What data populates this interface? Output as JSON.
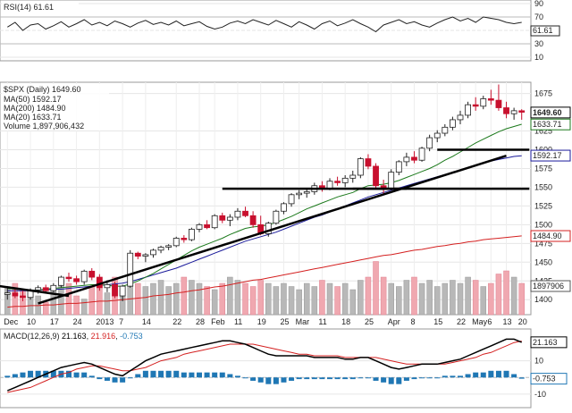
{
  "rsi": {
    "label": "RSI(14) 61.61",
    "value_label": "61.61",
    "ticks": [
      "90",
      "70",
      "50",
      "30",
      "10"
    ],
    "ylim": [
      10,
      90
    ],
    "values": [
      55,
      62,
      50,
      58,
      60,
      52,
      57,
      63,
      55,
      60,
      66,
      58,
      62,
      57,
      64,
      60,
      55,
      61,
      65,
      59,
      62,
      58,
      64,
      57,
      60,
      63,
      56,
      52,
      55,
      61,
      64,
      60,
      66,
      62,
      58,
      65,
      60,
      55,
      63,
      58,
      52,
      60,
      64,
      57,
      61,
      66,
      60,
      55,
      48,
      58,
      62,
      66,
      60,
      63,
      58,
      55,
      61,
      66,
      70,
      64,
      68,
      62,
      70,
      68,
      66,
      62,
      60,
      62
    ],
    "color": "#222222"
  },
  "price": {
    "title": "$SPX (Daily) 1649.60",
    "legend": [
      {
        "text": "MA(50) 1592.17",
        "color": "#1a1a9a"
      },
      {
        "text": "MA(200) 1484.90",
        "color": "#d42020"
      },
      {
        "text": "MA(20) 1633.71",
        "color": "#1c7a1c"
      },
      {
        "text": "Volume 1,897,906,432",
        "color": "#555555"
      }
    ],
    "ticks": [
      "1675",
      "1625",
      "1600",
      "1575",
      "1550",
      "1525",
      "1500",
      "1475",
      "1450",
      "1425",
      "1400"
    ],
    "ylim": [
      1380,
      1690
    ],
    "value_badges": [
      {
        "text": "1649.60",
        "color": "#000000"
      },
      {
        "text": "1633.71",
        "color": "#1c7a1c"
      },
      {
        "text": "1592.17",
        "color": "#1a1a9a"
      },
      {
        "text": "1484.90",
        "color": "#d42020"
      },
      {
        "text": "1897906",
        "color": "#555555"
      }
    ],
    "x_labels": [
      "Dec",
      "10",
      "17",
      "24",
      "2013",
      "7",
      "14",
      "22",
      "28",
      "Feb",
      "11",
      "19",
      "25",
      "Mar",
      "11",
      "18",
      "25",
      "Apr",
      "8",
      "15",
      "22",
      "May",
      "6",
      "13",
      "20"
    ],
    "ohlc": [
      [
        1407,
        1418,
        1400,
        1409
      ],
      [
        1409,
        1416,
        1402,
        1405
      ],
      [
        1405,
        1412,
        1398,
        1403
      ],
      [
        1403,
        1415,
        1400,
        1413
      ],
      [
        1413,
        1419,
        1408,
        1416
      ],
      [
        1416,
        1420,
        1409,
        1412
      ],
      [
        1412,
        1422,
        1410,
        1419
      ],
      [
        1419,
        1432,
        1416,
        1430
      ],
      [
        1430,
        1436,
        1424,
        1428
      ],
      [
        1428,
        1432,
        1420,
        1424
      ],
      [
        1424,
        1440,
        1420,
        1438
      ],
      [
        1438,
        1442,
        1426,
        1430
      ],
      [
        1430,
        1434,
        1412,
        1416
      ],
      [
        1416,
        1426,
        1410,
        1420
      ],
      [
        1420,
        1424,
        1402,
        1405
      ],
      [
        1405,
        1420,
        1398,
        1418
      ],
      [
        1418,
        1466,
        1416,
        1462
      ],
      [
        1462,
        1464,
        1454,
        1458
      ],
      [
        1458,
        1462,
        1450,
        1460
      ],
      [
        1460,
        1468,
        1456,
        1466
      ],
      [
        1466,
        1472,
        1462,
        1470
      ],
      [
        1470,
        1474,
        1466,
        1472
      ],
      [
        1472,
        1484,
        1470,
        1482
      ],
      [
        1482,
        1486,
        1476,
        1480
      ],
      [
        1480,
        1496,
        1478,
        1494
      ],
      [
        1494,
        1502,
        1490,
        1500
      ],
      [
        1500,
        1506,
        1494,
        1496
      ],
      [
        1496,
        1514,
        1494,
        1512
      ],
      [
        1512,
        1516,
        1502,
        1506
      ],
      [
        1506,
        1514,
        1498,
        1510
      ],
      [
        1510,
        1522,
        1506,
        1518
      ],
      [
        1518,
        1524,
        1510,
        1512
      ],
      [
        1512,
        1518,
        1496,
        1500
      ],
      [
        1500,
        1512,
        1486,
        1488
      ],
      [
        1488,
        1504,
        1484,
        1502
      ],
      [
        1502,
        1520,
        1500,
        1518
      ],
      [
        1518,
        1530,
        1514,
        1528
      ],
      [
        1528,
        1542,
        1524,
        1540
      ],
      [
        1540,
        1546,
        1534,
        1542
      ],
      [
        1542,
        1548,
        1536,
        1544
      ],
      [
        1544,
        1556,
        1540,
        1552
      ],
      [
        1552,
        1558,
        1544,
        1548
      ],
      [
        1548,
        1562,
        1546,
        1558
      ],
      [
        1558,
        1564,
        1552,
        1556
      ],
      [
        1556,
        1566,
        1550,
        1562
      ],
      [
        1562,
        1572,
        1556,
        1566
      ],
      [
        1566,
        1590,
        1562,
        1588
      ],
      [
        1588,
        1594,
        1574,
        1578
      ],
      [
        1578,
        1582,
        1548,
        1552
      ],
      [
        1552,
        1560,
        1540,
        1548
      ],
      [
        1548,
        1574,
        1546,
        1570
      ],
      [
        1570,
        1586,
        1566,
        1584
      ],
      [
        1584,
        1596,
        1578,
        1590
      ],
      [
        1590,
        1598,
        1582,
        1586
      ],
      [
        1586,
        1604,
        1584,
        1602
      ],
      [
        1602,
        1620,
        1598,
        1616
      ],
      [
        1616,
        1626,
        1610,
        1622
      ],
      [
        1622,
        1634,
        1618,
        1630
      ],
      [
        1630,
        1644,
        1626,
        1640
      ],
      [
        1640,
        1652,
        1634,
        1646
      ],
      [
        1646,
        1664,
        1642,
        1660
      ],
      [
        1660,
        1670,
        1652,
        1658
      ],
      [
        1658,
        1672,
        1654,
        1668
      ],
      [
        1668,
        1680,
        1660,
        1666
      ],
      [
        1666,
        1687,
        1652,
        1656
      ],
      [
        1656,
        1664,
        1642,
        1648
      ],
      [
        1648,
        1656,
        1640,
        1652
      ],
      [
        1652,
        1654,
        1640,
        1650
      ]
    ],
    "ma20": [
      1415,
      1414,
      1413,
      1412,
      1413,
      1414,
      1415,
      1416,
      1417,
      1418,
      1419,
      1420,
      1420,
      1419,
      1418,
      1418,
      1421,
      1425,
      1430,
      1435,
      1441,
      1447,
      1453,
      1459,
      1465,
      1470,
      1474,
      1478,
      1482,
      1487,
      1491,
      1495,
      1497,
      1498,
      1500,
      1503,
      1507,
      1511,
      1516,
      1521,
      1525,
      1529,
      1533,
      1537,
      1540,
      1543,
      1548,
      1552,
      1553,
      1554,
      1556,
      1559,
      1563,
      1567,
      1571,
      1575,
      1580,
      1586,
      1591,
      1597,
      1603,
      1609,
      1614,
      1619,
      1624,
      1628,
      1631,
      1634
    ],
    "ma50": [
      1412,
      1412,
      1412,
      1412,
      1413,
      1413,
      1414,
      1414,
      1415,
      1416,
      1417,
      1418,
      1419,
      1420,
      1421,
      1422,
      1424,
      1427,
      1430,
      1433,
      1436,
      1439,
      1442,
      1446,
      1450,
      1454,
      1458,
      1462,
      1466,
      1470,
      1474,
      1478,
      1481,
      1484,
      1487,
      1490,
      1494,
      1498,
      1502,
      1506,
      1510,
      1513,
      1517,
      1521,
      1525,
      1529,
      1533,
      1537,
      1540,
      1543,
      1546,
      1549,
      1552,
      1555,
      1558,
      1561,
      1564,
      1567,
      1570,
      1573,
      1576,
      1579,
      1582,
      1585,
      1587,
      1589,
      1591,
      1592
    ],
    "ma200": [
      1390,
      1391,
      1391,
      1392,
      1392,
      1393,
      1393,
      1394,
      1395,
      1395,
      1396,
      1397,
      1398,
      1398,
      1399,
      1400,
      1401,
      1402,
      1403,
      1405,
      1406,
      1407,
      1409,
      1410,
      1412,
      1413,
      1415,
      1417,
      1418,
      1420,
      1422,
      1424,
      1426,
      1427,
      1429,
      1431,
      1433,
      1435,
      1437,
      1439,
      1441,
      1443,
      1445,
      1447,
      1449,
      1451,
      1453,
      1455,
      1457,
      1459,
      1460,
      1462,
      1464,
      1466,
      1467,
      1469,
      1471,
      1472,
      1474,
      1475,
      1477,
      1478,
      1480,
      1481,
      1482,
      1483,
      1484,
      1485
    ],
    "volume": [
      0.45,
      0.5,
      0.4,
      0.35,
      0.3,
      0.2,
      0.4,
      0.55,
      0.5,
      0.3,
      0.25,
      0.45,
      0.5,
      0.35,
      0.6,
      0.4,
      0.55,
      0.5,
      0.45,
      0.5,
      0.55,
      0.45,
      0.5,
      0.6,
      0.55,
      0.5,
      0.45,
      0.4,
      0.5,
      0.6,
      0.55,
      0.5,
      0.45,
      0.55,
      0.5,
      0.45,
      0.5,
      0.45,
      0.4,
      0.5,
      0.45,
      0.55,
      0.5,
      0.45,
      0.5,
      0.4,
      0.55,
      0.6,
      0.85,
      0.6,
      0.5,
      0.45,
      0.55,
      0.6,
      0.5,
      0.55,
      0.45,
      0.5,
      0.55,
      0.5,
      0.6,
      0.55,
      0.45,
      0.5,
      0.65,
      0.7,
      0.6,
      0.5
    ],
    "support_lines": [
      {
        "from": [
          4,
          1395
        ],
        "to": [
          65,
          1592
        ]
      },
      {
        "from": [
          -1,
          1418
        ],
        "to": [
          8,
          1405
        ]
      },
      {
        "from": [
          28,
          1548
        ],
        "to": [
          52,
          1548
        ]
      },
      {
        "from": [
          45,
          1548
        ],
        "to": [
          68,
          1548
        ]
      },
      {
        "from": [
          56,
          1600
        ],
        "to": [
          68,
          1600
        ]
      }
    ]
  },
  "macd": {
    "label": "MACD(12,26,9) 21.163, 21.916, -0.753",
    "label_parts": [
      "MACD(12,26,9) ",
      "21.163",
      ", ",
      "21.916",
      ", ",
      "-0.753"
    ],
    "ticks": [
      "10",
      "0",
      "-10"
    ],
    "value_badges": [
      {
        "text": "21.163",
        "color": "#000000"
      },
      {
        "text": "-0.753",
        "color": "#1f77b4"
      }
    ],
    "ylim": [
      -16,
      27
    ],
    "macd": [
      -8,
      -6,
      -4,
      -2,
      0,
      2,
      4,
      6,
      7,
      8,
      9,
      8,
      6,
      4,
      2,
      1,
      4,
      7,
      10,
      12,
      14,
      15,
      16,
      17,
      18,
      19,
      20,
      21,
      22,
      22,
      21,
      20,
      18,
      16,
      14,
      13,
      13,
      13,
      13,
      13,
      12,
      12,
      12,
      12,
      11,
      11,
      12,
      12,
      10,
      8,
      6,
      5,
      6,
      7,
      8,
      8,
      8,
      9,
      10,
      11,
      13,
      15,
      17,
      19,
      21,
      23,
      23,
      21.163
    ],
    "signal": [
      -9,
      -8,
      -7,
      -6,
      -4,
      -2,
      0,
      2,
      3,
      5,
      6,
      7,
      7,
      6,
      5,
      4,
      4,
      5,
      6,
      8,
      10,
      11,
      12,
      14,
      15,
      16,
      17,
      18,
      19,
      20,
      20,
      20,
      20,
      19,
      18,
      17,
      16,
      15,
      14,
      14,
      13,
      13,
      13,
      13,
      12,
      12,
      12,
      12,
      12,
      11,
      10,
      9,
      8,
      8,
      8,
      8,
      8,
      8,
      9,
      10,
      11,
      12,
      14,
      15,
      17,
      19,
      21,
      21.916
    ],
    "hist": [
      1,
      2,
      3,
      4,
      4,
      4,
      4,
      4,
      4,
      3,
      3,
      1,
      -1,
      -2,
      -3,
      -3,
      0,
      2,
      4,
      4,
      4,
      4,
      4,
      3,
      3,
      3,
      3,
      3,
      3,
      2,
      1,
      0,
      -2,
      -3,
      -4,
      -4,
      -3,
      -2,
      -1,
      -1,
      -1,
      -1,
      -1,
      -1,
      -1,
      -1,
      0,
      0,
      -2,
      -3,
      -4,
      -4,
      -2,
      -1,
      0,
      0,
      0,
      1,
      1,
      1,
      2,
      3,
      3,
      4,
      4,
      4,
      2,
      -0.753
    ],
    "macd_color": "#000000",
    "signal_color": "#d42020",
    "hist_color": "#1f77b4"
  },
  "colors": {
    "up": "#ffffff",
    "down": "#c8102e",
    "outline": "#222222",
    "support": "#000000"
  }
}
